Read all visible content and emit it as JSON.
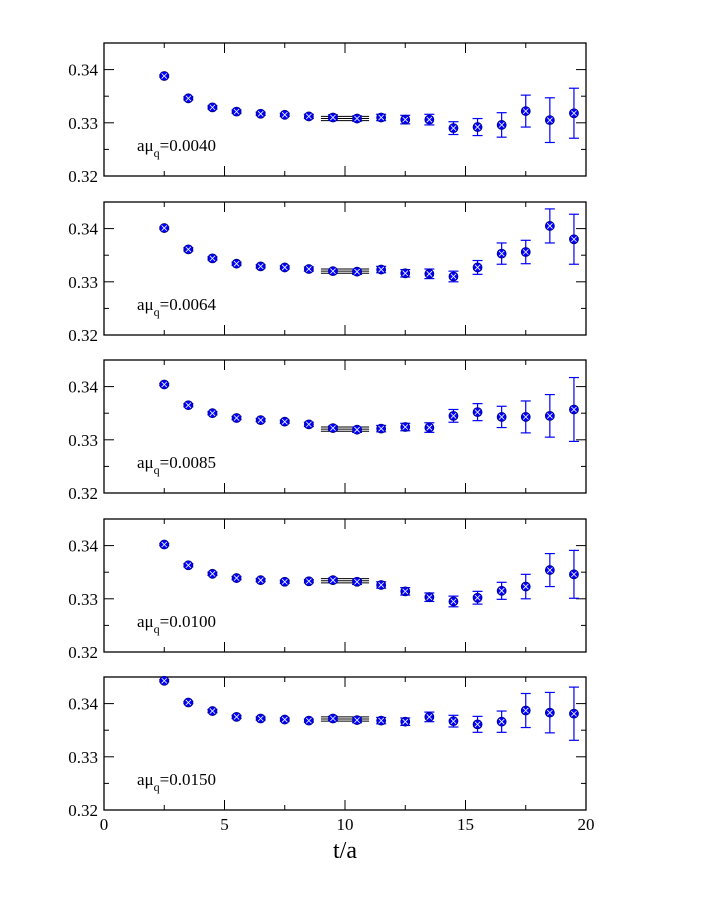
{
  "chart_data": {
    "type": "scatter",
    "xlabel": "t/a",
    "xlim": [
      0,
      20
    ],
    "xticks": [
      "0",
      "5",
      "10",
      "15",
      "20"
    ],
    "ylim": [
      0.32,
      0.345
    ],
    "yticks": [
      "0.32",
      "0.33",
      "0.34"
    ],
    "marker_color": "#0000ff",
    "fit_line_color": "#000000",
    "panels": [
      {
        "label_prefix": "aμ",
        "label_sub": "q",
        "label_value": "=0.0040",
        "fit": {
          "value": 0.3308,
          "error": 0.0004,
          "range": [
            9,
            11
          ]
        },
        "points": [
          {
            "x": 2.5,
            "y": 0.3388,
            "err": 0.0002
          },
          {
            "x": 3.5,
            "y": 0.3346,
            "err": 0.0003
          },
          {
            "x": 4.5,
            "y": 0.3329,
            "err": 0.0003
          },
          {
            "x": 5.5,
            "y": 0.3321,
            "err": 0.0003
          },
          {
            "x": 6.5,
            "y": 0.3317,
            "err": 0.0003
          },
          {
            "x": 7.5,
            "y": 0.3315,
            "err": 0.0003
          },
          {
            "x": 8.5,
            "y": 0.3312,
            "err": 0.0004
          },
          {
            "x": 9.5,
            "y": 0.331,
            "err": 0.0005
          },
          {
            "x": 10.5,
            "y": 0.3308,
            "err": 0.0005
          },
          {
            "x": 11.5,
            "y": 0.331,
            "err": 0.0006
          },
          {
            "x": 12.5,
            "y": 0.3306,
            "err": 0.0008
          },
          {
            "x": 13.5,
            "y": 0.3306,
            "err": 0.001
          },
          {
            "x": 14.5,
            "y": 0.329,
            "err": 0.0012
          },
          {
            "x": 15.5,
            "y": 0.3292,
            "err": 0.0016
          },
          {
            "x": 16.5,
            "y": 0.3296,
            "err": 0.0023
          },
          {
            "x": 17.5,
            "y": 0.3322,
            "err": 0.003
          },
          {
            "x": 18.5,
            "y": 0.3305,
            "err": 0.0042
          },
          {
            "x": 19.5,
            "y": 0.3318,
            "err": 0.0047
          }
        ]
      },
      {
        "label_prefix": "aμ",
        "label_sub": "q",
        "label_value": "=0.0064",
        "fit": {
          "value": 0.332,
          "error": 0.0004,
          "range": [
            9,
            11
          ]
        },
        "points": [
          {
            "x": 2.5,
            "y": 0.3401,
            "err": 0.0002
          },
          {
            "x": 3.5,
            "y": 0.3361,
            "err": 0.0003
          },
          {
            "x": 4.5,
            "y": 0.3344,
            "err": 0.0003
          },
          {
            "x": 5.5,
            "y": 0.3334,
            "err": 0.0003
          },
          {
            "x": 6.5,
            "y": 0.3329,
            "err": 0.0003
          },
          {
            "x": 7.5,
            "y": 0.3327,
            "err": 0.0003
          },
          {
            "x": 8.5,
            "y": 0.3324,
            "err": 0.0004
          },
          {
            "x": 9.5,
            "y": 0.332,
            "err": 0.0004
          },
          {
            "x": 10.5,
            "y": 0.3319,
            "err": 0.0005
          },
          {
            "x": 11.5,
            "y": 0.3323,
            "err": 0.0006
          },
          {
            "x": 12.5,
            "y": 0.3316,
            "err": 0.0007
          },
          {
            "x": 13.5,
            "y": 0.3315,
            "err": 0.0009
          },
          {
            "x": 14.5,
            "y": 0.331,
            "err": 0.001
          },
          {
            "x": 15.5,
            "y": 0.3327,
            "err": 0.0013
          },
          {
            "x": 16.5,
            "y": 0.3353,
            "err": 0.002
          },
          {
            "x": 17.5,
            "y": 0.3356,
            "err": 0.0022
          },
          {
            "x": 18.5,
            "y": 0.3405,
            "err": 0.0032
          },
          {
            "x": 19.5,
            "y": 0.338,
            "err": 0.0047
          }
        ]
      },
      {
        "label_prefix": "aμ",
        "label_sub": "q",
        "label_value": "=0.0085",
        "fit": {
          "value": 0.332,
          "error": 0.0004,
          "range": [
            9,
            11
          ]
        },
        "points": [
          {
            "x": 2.5,
            "y": 0.3404,
            "err": 0.0002
          },
          {
            "x": 3.5,
            "y": 0.3365,
            "err": 0.0003
          },
          {
            "x": 4.5,
            "y": 0.335,
            "err": 0.0003
          },
          {
            "x": 5.5,
            "y": 0.3341,
            "err": 0.0003
          },
          {
            "x": 6.5,
            "y": 0.3337,
            "err": 0.0003
          },
          {
            "x": 7.5,
            "y": 0.3334,
            "err": 0.0003
          },
          {
            "x": 8.5,
            "y": 0.3329,
            "err": 0.0004
          },
          {
            "x": 9.5,
            "y": 0.3322,
            "err": 0.0004
          },
          {
            "x": 10.5,
            "y": 0.3319,
            "err": 0.0005
          },
          {
            "x": 11.5,
            "y": 0.3321,
            "err": 0.0006
          },
          {
            "x": 12.5,
            "y": 0.3324,
            "err": 0.0007
          },
          {
            "x": 13.5,
            "y": 0.3323,
            "err": 0.0009
          },
          {
            "x": 14.5,
            "y": 0.3345,
            "err": 0.0012
          },
          {
            "x": 15.5,
            "y": 0.3352,
            "err": 0.0016
          },
          {
            "x": 16.5,
            "y": 0.3343,
            "err": 0.002
          },
          {
            "x": 17.5,
            "y": 0.3343,
            "err": 0.003
          },
          {
            "x": 18.5,
            "y": 0.3345,
            "err": 0.004
          },
          {
            "x": 19.5,
            "y": 0.3357,
            "err": 0.006
          }
        ]
      },
      {
        "label_prefix": "aμ",
        "label_sub": "q",
        "label_value": "=0.0100",
        "fit": {
          "value": 0.3334,
          "error": 0.0004,
          "range": [
            9,
            11
          ]
        },
        "points": [
          {
            "x": 2.5,
            "y": 0.3402,
            "err": 0.0002
          },
          {
            "x": 3.5,
            "y": 0.3363,
            "err": 0.0003
          },
          {
            "x": 4.5,
            "y": 0.3347,
            "err": 0.0003
          },
          {
            "x": 5.5,
            "y": 0.3339,
            "err": 0.0003
          },
          {
            "x": 6.5,
            "y": 0.3335,
            "err": 0.0003
          },
          {
            "x": 7.5,
            "y": 0.3332,
            "err": 0.0003
          },
          {
            "x": 8.5,
            "y": 0.3333,
            "err": 0.0003
          },
          {
            "x": 9.5,
            "y": 0.3335,
            "err": 0.0004
          },
          {
            "x": 10.5,
            "y": 0.3332,
            "err": 0.0005
          },
          {
            "x": 11.5,
            "y": 0.3326,
            "err": 0.0006
          },
          {
            "x": 12.5,
            "y": 0.3314,
            "err": 0.0007
          },
          {
            "x": 13.5,
            "y": 0.3303,
            "err": 0.0008
          },
          {
            "x": 14.5,
            "y": 0.3295,
            "err": 0.001
          },
          {
            "x": 15.5,
            "y": 0.3302,
            "err": 0.0012
          },
          {
            "x": 16.5,
            "y": 0.3315,
            "err": 0.0016
          },
          {
            "x": 17.5,
            "y": 0.3323,
            "err": 0.0023
          },
          {
            "x": 18.5,
            "y": 0.3354,
            "err": 0.0031
          },
          {
            "x": 19.5,
            "y": 0.3346,
            "err": 0.0045
          }
        ]
      },
      {
        "label_prefix": "aμ",
        "label_sub": "q",
        "label_value": "=0.0150",
        "fit": {
          "value": 0.3371,
          "error": 0.0004,
          "range": [
            9,
            11
          ]
        },
        "points": [
          {
            "x": 2.5,
            "y": 0.3443,
            "err": 0.0002
          },
          {
            "x": 3.5,
            "y": 0.3402,
            "err": 0.0002
          },
          {
            "x": 4.5,
            "y": 0.3386,
            "err": 0.0003
          },
          {
            "x": 5.5,
            "y": 0.3375,
            "err": 0.0003
          },
          {
            "x": 6.5,
            "y": 0.3372,
            "err": 0.0003
          },
          {
            "x": 7.5,
            "y": 0.337,
            "err": 0.0003
          },
          {
            "x": 8.5,
            "y": 0.3368,
            "err": 0.0003
          },
          {
            "x": 9.5,
            "y": 0.3372,
            "err": 0.0004
          },
          {
            "x": 10.5,
            "y": 0.3369,
            "err": 0.0005
          },
          {
            "x": 11.5,
            "y": 0.3368,
            "err": 0.0006
          },
          {
            "x": 12.5,
            "y": 0.3366,
            "err": 0.0007
          },
          {
            "x": 13.5,
            "y": 0.3375,
            "err": 0.0009
          },
          {
            "x": 14.5,
            "y": 0.3367,
            "err": 0.0011
          },
          {
            "x": 15.5,
            "y": 0.3361,
            "err": 0.0015
          },
          {
            "x": 16.5,
            "y": 0.3366,
            "err": 0.002
          },
          {
            "x": 17.5,
            "y": 0.3387,
            "err": 0.0032
          },
          {
            "x": 18.5,
            "y": 0.3383,
            "err": 0.0038
          },
          {
            "x": 19.5,
            "y": 0.3381,
            "err": 0.005
          }
        ]
      }
    ]
  }
}
